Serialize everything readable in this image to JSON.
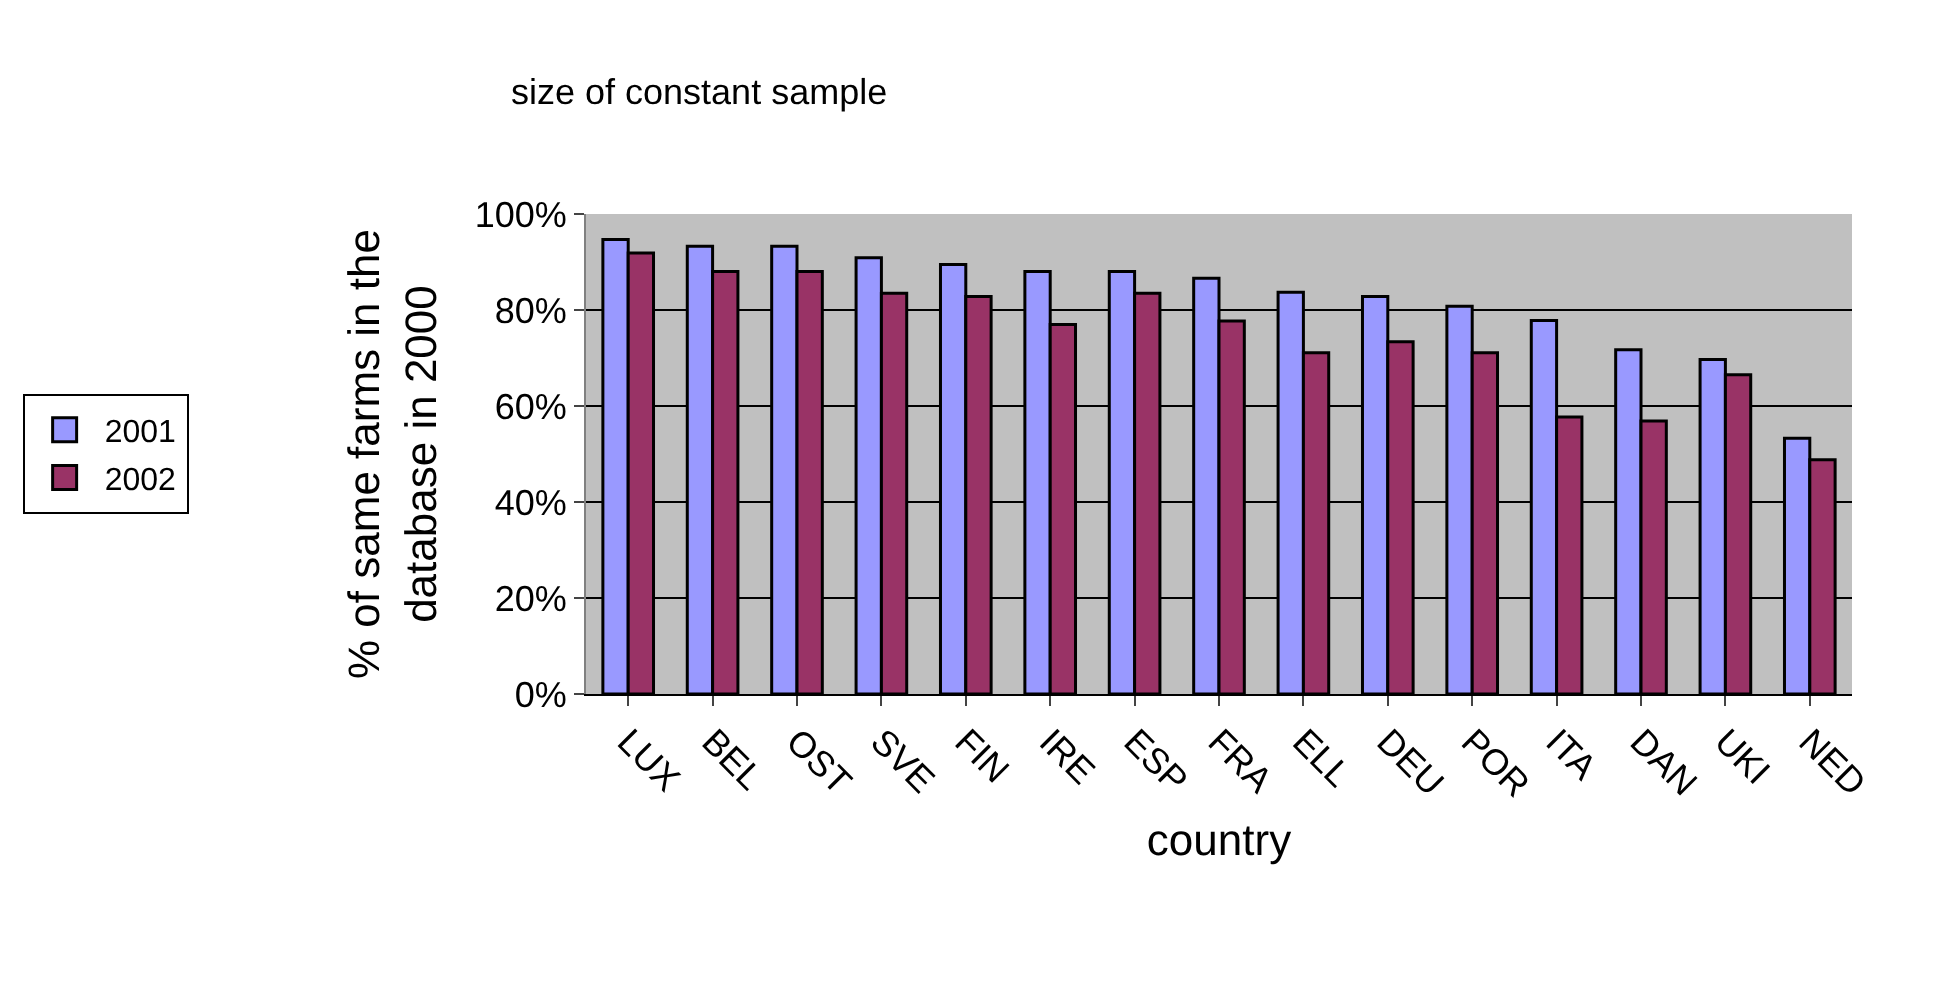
{
  "chart_data": {
    "type": "bar",
    "title": "size of constant sample",
    "xlabel": "country",
    "ylabel": "% of same farms in the database in 2000",
    "categories": [
      "LUX",
      "BEL",
      "OST",
      "SVE",
      "FIN",
      "IRE",
      "ESP",
      "FRA",
      "ELL",
      "DEU",
      "POR",
      "ITA",
      "DAN",
      "UKI",
      "NED"
    ],
    "series": [
      {
        "name": "2001",
        "color": "#9999ff",
        "values": [
          94.7,
          93.3,
          93.3,
          90.9,
          89.5,
          88.0,
          88.0,
          86.6,
          83.7,
          82.8,
          80.8,
          77.8,
          71.7,
          69.7,
          53.3
        ]
      },
      {
        "name": "2002",
        "color": "#993366",
        "values": [
          91.9,
          88.0,
          88.0,
          83.5,
          82.8,
          77.0,
          83.5,
          77.7,
          71.1,
          73.4,
          71.1,
          57.7,
          56.9,
          66.5,
          48.8
        ]
      }
    ],
    "ylim": [
      0,
      100
    ],
    "yticks": [
      {
        "value": 0,
        "label": "0%"
      },
      {
        "value": 20,
        "label": "20%"
      },
      {
        "value": 40,
        "label": "40%"
      },
      {
        "value": 60,
        "label": "60%"
      },
      {
        "value": 80,
        "label": "80%"
      },
      {
        "value": 100,
        "label": "100%"
      }
    ],
    "grid": "y",
    "legend": "left"
  }
}
